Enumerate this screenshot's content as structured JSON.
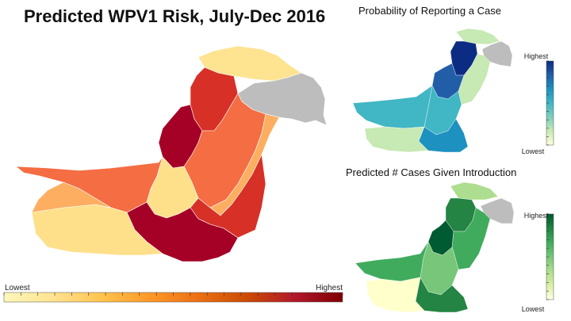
{
  "main_map": {
    "title": "Predicted WPV1 Risk, July-Dec 2016",
    "legend": {
      "low_label": "Lowest",
      "high_label": "Highest",
      "colors": [
        "#fff7bc",
        "#fee391",
        "#fec44f",
        "#fe9929",
        "#ec7014",
        "#cc4c02",
        "#b2182b",
        "#7f0000"
      ]
    }
  },
  "probability_map": {
    "title": "Probability of Reporting a Case",
    "legend": {
      "low_label": "Lowest",
      "high_label": "Highest",
      "colors": [
        "#ffffd9",
        "#c7e9b4",
        "#7fcdbb",
        "#41b6c4",
        "#1d91c0",
        "#225ea8",
        "#0c2c84"
      ]
    }
  },
  "cases_map": {
    "title": "Predicted # Cases Given Introduction",
    "legend": {
      "low_label": "Lowest",
      "high_label": "Highest",
      "colors": [
        "#ffffe5",
        "#d9f0a3",
        "#addd8e",
        "#78c679",
        "#41ab5d",
        "#238443",
        "#005a32"
      ]
    }
  },
  "no_data_color": "#bdbdbd"
}
